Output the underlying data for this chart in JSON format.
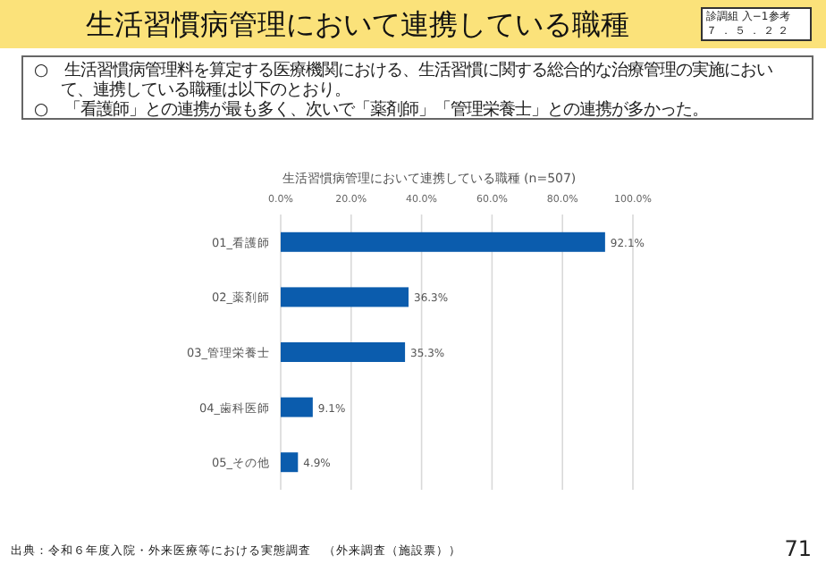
{
  "chart_data": {
    "type": "bar",
    "orientation": "horizontal",
    "title": "生活習慣病管理において連携している職種",
    "subtitle": "生活習慣病管理において連携している職種 (n=507)",
    "categories": [
      "01_看護師",
      "02_薬剤師",
      "03_管理栄養士",
      "04_歯科医師",
      "05_その他"
    ],
    "values": [
      92.1,
      36.3,
      35.3,
      9.1,
      4.9
    ],
    "value_labels": [
      "92.1%",
      "36.3%",
      "35.3%",
      "9.1%",
      "4.9%"
    ],
    "color": "#0b5cad",
    "xlim": [
      0,
      100
    ],
    "xticks": [
      {
        "value": 0,
        "label": "0.0%"
      },
      {
        "value": 20,
        "label": "20.0%"
      },
      {
        "value": 40,
        "label": "40.0%"
      },
      {
        "value": 60,
        "label": "60.0%"
      },
      {
        "value": 80,
        "label": "80.0%"
      },
      {
        "value": 100,
        "label": "100.0%"
      }
    ],
    "grid": "x",
    "annotations": [
      "診調組 入−1参考",
      "７．５．２２",
      "○　生活習慣病管理料を算定する医療機関における、生活習慣に関する総合的な治療管理の実施において、連携している職種は以下のとおり。",
      "○　「看護師」との連携が最も多く、次いで「薬剤師」「管理栄養士」との連携が多かった。",
      "出典：令和６年度入院・外来医療等における実態調査　（外来調査（施設票））",
      "71"
    ]
  }
}
